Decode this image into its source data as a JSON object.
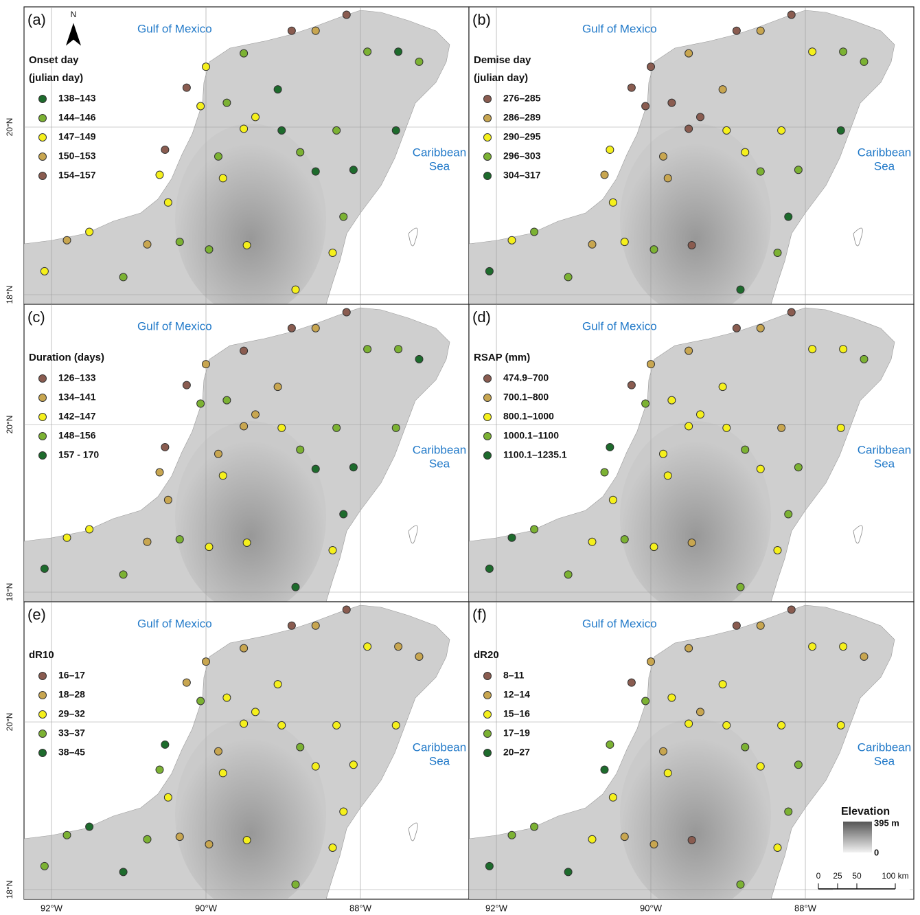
{
  "common": {
    "gulf": "Gulf of Mexico",
    "caribbean": [
      "Caribbean",
      "Sea"
    ],
    "north": "N",
    "lon_ticks": [
      {
        "value": -92,
        "label": "92°W"
      },
      {
        "value": -90,
        "label": "90°W"
      },
      {
        "value": -88,
        "label": "88°W"
      }
    ],
    "lat_ticks": [
      {
        "value": 20,
        "label": "20°N"
      },
      {
        "value": 18,
        "label": "18°N"
      }
    ],
    "elevation_legend": {
      "title": "Elevation",
      "max": {
        "value": 395,
        "label": "395 m"
      },
      "min": 0
    },
    "scale_bar": {
      "ticks": [
        0,
        25,
        50,
        {
          "value": 100,
          "label": "100 km"
        }
      ]
    }
  },
  "stations": [
    {
      "lon": -88.18,
      "lat": 21.34
    },
    {
      "lon": -88.58,
      "lat": 21.15
    },
    {
      "lon": -88.89,
      "lat": 21.15
    },
    {
      "lon": -89.51,
      "lat": 20.88
    },
    {
      "lon": -90.0,
      "lat": 20.72
    },
    {
      "lon": -90.25,
      "lat": 20.47
    },
    {
      "lon": -90.07,
      "lat": 20.25
    },
    {
      "lon": -89.73,
      "lat": 20.29
    },
    {
      "lon": -89.36,
      "lat": 20.12
    },
    {
      "lon": -89.02,
      "lat": 19.96
    },
    {
      "lon": -88.78,
      "lat": 19.7
    },
    {
      "lon": -88.58,
      "lat": 19.47
    },
    {
      "lon": -88.31,
      "lat": 19.96
    },
    {
      "lon": -87.91,
      "lat": 20.9
    },
    {
      "lon": -87.51,
      "lat": 20.9
    },
    {
      "lon": -87.24,
      "lat": 20.78
    },
    {
      "lon": -87.54,
      "lat": 19.96
    },
    {
      "lon": -88.09,
      "lat": 19.49
    },
    {
      "lon": -88.22,
      "lat": 18.93
    },
    {
      "lon": -88.36,
      "lat": 18.5
    },
    {
      "lon": -88.84,
      "lat": 18.06
    },
    {
      "lon": -89.47,
      "lat": 18.59
    },
    {
      "lon": -89.96,
      "lat": 18.54
    },
    {
      "lon": -90.34,
      "lat": 18.63
    },
    {
      "lon": -90.76,
      "lat": 18.6
    },
    {
      "lon": -91.07,
      "lat": 18.21
    },
    {
      "lon": -91.51,
      "lat": 18.75
    },
    {
      "lon": -91.8,
      "lat": 18.65
    },
    {
      "lon": -92.09,
      "lat": 18.28
    },
    {
      "lon": -90.53,
      "lat": 19.73
    },
    {
      "lon": -90.6,
      "lat": 19.43
    },
    {
      "lon": -89.84,
      "lat": 19.65
    },
    {
      "lon": -89.78,
      "lat": 19.39
    },
    {
      "lon": -90.49,
      "lat": 19.1
    },
    {
      "lon": -89.07,
      "lat": 20.45
    },
    {
      "lon": -89.51,
      "lat": 19.98
    }
  ],
  "panels": [
    {
      "label": "(a)",
      "legend_title": [
        "Onset day",
        "(julian day)"
      ],
      "classes": [
        {
          "label": "138–143",
          "color": "#1d6b2c"
        },
        {
          "label": "144–146",
          "color": "#7cb233"
        },
        {
          "label": "147–149",
          "color": "#f5f01c"
        },
        {
          "label": "150–153",
          "color": "#c8a650"
        },
        {
          "label": "154–157",
          "color": "#8a5c50"
        }
      ],
      "station_classes": [
        4,
        3,
        4,
        1,
        2,
        4,
        2,
        1,
        2,
        0,
        1,
        0,
        1,
        1,
        0,
        1,
        0,
        0,
        1,
        2,
        2,
        2,
        1,
        1,
        3,
        1,
        2,
        3,
        2,
        4,
        2,
        1,
        2,
        2,
        0,
        2
      ]
    },
    {
      "label": "(b)",
      "legend_title": [
        "Demise day",
        "(julian day)"
      ],
      "classes": [
        {
          "label": "276–285",
          "color": "#8a5c50"
        },
        {
          "label": "286–289",
          "color": "#c8a650"
        },
        {
          "label": "290–295",
          "color": "#f5f01c"
        },
        {
          "label": "296–303",
          "color": "#7cb233"
        },
        {
          "label": "304–317",
          "color": "#1d6b2c"
        }
      ],
      "station_classes": [
        0,
        1,
        0,
        1,
        0,
        0,
        0,
        0,
        0,
        2,
        2,
        3,
        2,
        2,
        3,
        3,
        4,
        3,
        4,
        3,
        4,
        0,
        3,
        2,
        1,
        3,
        3,
        2,
        4,
        2,
        1,
        1,
        1,
        2,
        1,
        0
      ]
    },
    {
      "label": "(c)",
      "legend_title": [
        "Duration (days)"
      ],
      "classes": [
        {
          "label": "126–133",
          "color": "#8a5c50"
        },
        {
          "label": "134–141",
          "color": "#c8a650"
        },
        {
          "label": "142–147",
          "color": "#f5f01c"
        },
        {
          "label": "148–156",
          "color": "#7cb233"
        },
        {
          "label": "157 - 170",
          "color": "#1d6b2c"
        }
      ],
      "station_classes": [
        0,
        1,
        0,
        0,
        1,
        0,
        3,
        3,
        1,
        2,
        3,
        4,
        3,
        3,
        3,
        4,
        3,
        4,
        4,
        2,
        4,
        2,
        2,
        3,
        1,
        3,
        2,
        2,
        4,
        0,
        1,
        1,
        2,
        1,
        1,
        1
      ]
    },
    {
      "label": "(d)",
      "legend_title": [
        "RSAP (mm)"
      ],
      "classes": [
        {
          "label": "474.9–700",
          "color": "#8a5c50"
        },
        {
          "label": "700.1–800",
          "color": "#c8a650"
        },
        {
          "label": "800.1–1000",
          "color": "#f5f01c"
        },
        {
          "label": "1000.1–1100",
          "color": "#7cb233"
        },
        {
          "label": "1100.1–1235.1",
          "color": "#1d6b2c"
        }
      ],
      "station_classes": [
        0,
        1,
        0,
        1,
        1,
        0,
        3,
        2,
        2,
        2,
        3,
        2,
        1,
        2,
        2,
        3,
        2,
        3,
        3,
        2,
        3,
        1,
        2,
        3,
        2,
        3,
        3,
        4,
        4,
        4,
        3,
        2,
        2,
        2,
        2,
        2
      ]
    },
    {
      "label": "(e)",
      "legend_title": [
        "dR10"
      ],
      "classes": [
        {
          "label": "16–17",
          "color": "#8a5c50"
        },
        {
          "label": "18–28",
          "color": "#c8a650"
        },
        {
          "label": "29–32",
          "color": "#f5f01c"
        },
        {
          "label": "33–37",
          "color": "#7cb233"
        },
        {
          "label": "38–45",
          "color": "#1d6b2c"
        }
      ],
      "station_classes": [
        0,
        1,
        0,
        1,
        1,
        1,
        3,
        2,
        2,
        2,
        3,
        2,
        2,
        2,
        1,
        1,
        2,
        2,
        2,
        2,
        3,
        2,
        1,
        1,
        3,
        4,
        4,
        3,
        3,
        4,
        3,
        1,
        2,
        2,
        2,
        2
      ]
    },
    {
      "label": "(f)",
      "legend_title": [
        "dR20"
      ],
      "classes": [
        {
          "label": "8–11",
          "color": "#8a5c50"
        },
        {
          "label": "12–14",
          "color": "#c8a650"
        },
        {
          "label": "15–16",
          "color": "#f5f01c"
        },
        {
          "label": "17–19",
          "color": "#7cb233"
        },
        {
          "label": "20–27",
          "color": "#1d6b2c"
        }
      ],
      "station_classes": [
        0,
        1,
        0,
        1,
        1,
        0,
        3,
        2,
        1,
        2,
        3,
        2,
        2,
        2,
        2,
        1,
        2,
        3,
        3,
        2,
        3,
        0,
        1,
        1,
        2,
        4,
        3,
        3,
        4,
        3,
        4,
        1,
        2,
        2,
        2,
        2
      ]
    }
  ]
}
